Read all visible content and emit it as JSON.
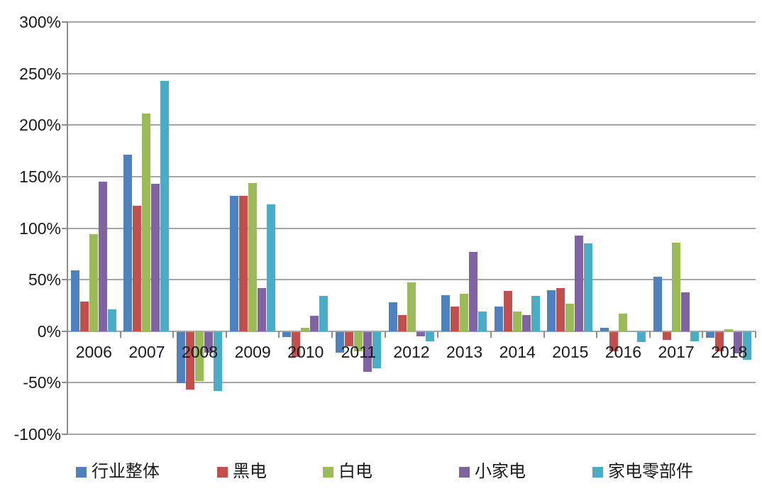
{
  "chart_data": {
    "type": "bar",
    "title": "",
    "xlabel": "",
    "ylabel": "",
    "categories": [
      "2006",
      "2007",
      "2008",
      "2009",
      "2010",
      "2011",
      "2012",
      "2013",
      "2014",
      "2015",
      "2016",
      "2017",
      "2018"
    ],
    "series": [
      {
        "id": "industry-total",
        "name": "行业整体",
        "color": "#4F81BD",
        "values": [
          59,
          171,
          -50,
          131,
          -5,
          -20,
          28,
          35,
          24,
          40,
          3,
          53,
          -6
        ]
      },
      {
        "id": "black-electronics",
        "name": "黑电",
        "color": "#C0504D",
        "values": [
          29,
          122,
          -56,
          131,
          -24,
          -14,
          16,
          24,
          39,
          42,
          -19,
          -8,
          -19
        ]
      },
      {
        "id": "white-electronics",
        "name": "白电",
        "color": "#9BBB59",
        "values": [
          94,
          211,
          -48,
          144,
          3,
          -19,
          47,
          36,
          19,
          27,
          17,
          86,
          2
        ]
      },
      {
        "id": "small-appliances",
        "name": "小家电",
        "color": "#8064A2",
        "values": [
          145,
          143,
          -20,
          42,
          15,
          -39,
          -4,
          77,
          16,
          93,
          0,
          38,
          -21
        ]
      },
      {
        "id": "appliance-parts",
        "name": "家电零部件",
        "color": "#4BACC6",
        "values": [
          21,
          243,
          -57,
          123,
          34,
          -35,
          -9,
          19,
          34,
          85,
          -10,
          -9,
          -27
        ]
      }
    ],
    "y_axis": {
      "min": -100,
      "max": 300,
      "step": 50,
      "tick_labels": [
        "300%",
        "250%",
        "200%",
        "150%",
        "100%",
        "50%",
        "0%",
        "-50%",
        "-100%"
      ],
      "unit": "%"
    },
    "grid": true,
    "gridline_color": "#a6a6a6",
    "axis_color": "#8c8c8c",
    "legend_position": "bottom"
  }
}
